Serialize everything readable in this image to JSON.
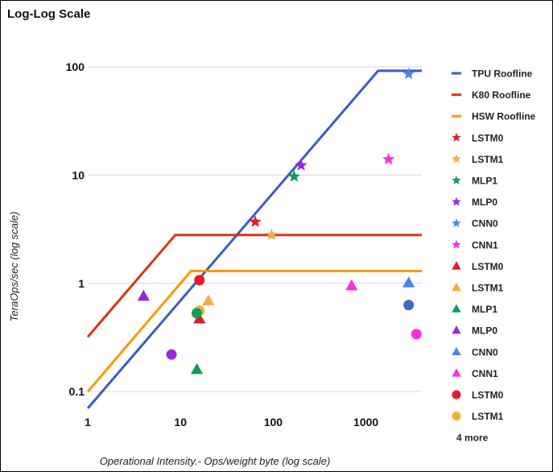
{
  "chart_data": {
    "type": "scatter",
    "title": "Log-Log Scale",
    "xlabel": "Operational Intensity.- Ops/weight byte (log scale)",
    "ylabel": "TeraOps/sec (log scale)",
    "xscale": "log",
    "yscale": "log",
    "xlim": [
      1,
      4000
    ],
    "ylim": [
      0.07,
      100
    ],
    "grid": "horizontal",
    "legend_position": "right",
    "x_ticks": [
      {
        "value": 1,
        "label": "1"
      },
      {
        "value": 10,
        "label": "10"
      },
      {
        "value": 100,
        "label": "100"
      },
      {
        "value": 1000,
        "label": "1000"
      }
    ],
    "y_ticks": [
      {
        "value": 0.1,
        "label": "0.1"
      },
      {
        "value": 1,
        "label": "1"
      },
      {
        "value": 10,
        "label": "10"
      },
      {
        "value": 100,
        "label": "100"
      }
    ],
    "lines": [
      {
        "name": "TPU Roofline",
        "color": "#3c5cc4",
        "points": [
          [
            1,
            0.07
          ],
          [
            1350,
            92
          ],
          [
            4000,
            92
          ]
        ]
      },
      {
        "name": "K80 Roofline",
        "color": "#dd3311",
        "points": [
          [
            1,
            0.32
          ],
          [
            8.8,
            2.8
          ],
          [
            4000,
            2.8
          ]
        ]
      },
      {
        "name": "HSW Roofline",
        "color": "#ff9900",
        "points": [
          [
            1,
            0.1
          ],
          [
            13,
            1.3
          ],
          [
            4000,
            1.3
          ]
        ]
      }
    ],
    "series": [
      {
        "name": "LSTM0",
        "marker": "star",
        "color": "#e8192c",
        "points": [
          [
            64,
            3.7
          ]
        ]
      },
      {
        "name": "LSTM1",
        "marker": "star",
        "color": "#fbab38",
        "points": [
          [
            96,
            2.8
          ]
        ]
      },
      {
        "name": "MLP1",
        "marker": "star",
        "color": "#0f9d58",
        "points": [
          [
            168,
            9.7
          ]
        ]
      },
      {
        "name": "MLP0",
        "marker": "star",
        "color": "#9c27d6",
        "points": [
          [
            200,
            12.3
          ]
        ]
      },
      {
        "name": "CNN0",
        "marker": "star",
        "color": "#4a86e8",
        "points": [
          [
            2888,
            86
          ]
        ]
      },
      {
        "name": "CNN1",
        "marker": "star",
        "color": "#ff2bea",
        "points": [
          [
            1750,
            14
          ]
        ]
      },
      {
        "name": "LSTM0",
        "marker": "triangle",
        "color": "#e8192c",
        "points": [
          [
            16,
            0.47
          ]
        ]
      },
      {
        "name": "LSTM1",
        "marker": "triangle",
        "color": "#fbab38",
        "points": [
          [
            20,
            0.69
          ]
        ]
      },
      {
        "name": "MLP1",
        "marker": "triangle",
        "color": "#0f9d58",
        "points": [
          [
            15,
            0.16
          ]
        ]
      },
      {
        "name": "MLP0",
        "marker": "triangle",
        "color": "#9c27d6",
        "points": [
          [
            4,
            0.76
          ]
        ]
      },
      {
        "name": "CNN0",
        "marker": "triangle",
        "color": "#4a86e8",
        "points": [
          [
            2888,
            1.01
          ]
        ]
      },
      {
        "name": "CNN1",
        "marker": "triangle",
        "color": "#ff2bea",
        "points": [
          [
            700,
            0.95
          ]
        ]
      },
      {
        "name": "LSTM0",
        "marker": "circle",
        "color": "#e8192c",
        "points": [
          [
            16,
            1.07
          ]
        ]
      },
      {
        "name": "LSTM1",
        "marker": "circle",
        "color": "#fbab38",
        "points": [
          [
            16,
            0.56
          ]
        ]
      },
      {
        "name": "MLP1",
        "marker": "circle",
        "color": "#0f9d58",
        "points": [
          [
            15,
            0.53
          ]
        ]
      },
      {
        "name": "MLP0",
        "marker": "circle",
        "color": "#9c27d6",
        "points": [
          [
            8,
            0.22
          ]
        ]
      },
      {
        "name": "CNN0",
        "marker": "circle",
        "color": "#3c6ac8",
        "points": [
          [
            2888,
            0.63
          ]
        ]
      },
      {
        "name": "CNN1",
        "marker": "circle",
        "color": "#ff2bea",
        "points": [
          [
            3500,
            0.34
          ]
        ]
      }
    ],
    "legend": {
      "entries": [
        {
          "label": "TPU Roofline",
          "kind": "line",
          "color": "#3c5cc4"
        },
        {
          "label": "K80 Roofline",
          "kind": "line",
          "color": "#dd3311"
        },
        {
          "label": "HSW Roofline",
          "kind": "line",
          "color": "#ff9900"
        },
        {
          "label": "LSTM0",
          "kind": "star",
          "color": "#e8192c"
        },
        {
          "label": "LSTM1",
          "kind": "star",
          "color": "#fbab38"
        },
        {
          "label": "MLP1",
          "kind": "star",
          "color": "#0f9d58"
        },
        {
          "label": "MLP0",
          "kind": "star",
          "color": "#9c27d6"
        },
        {
          "label": "CNN0",
          "kind": "star",
          "color": "#4a86e8"
        },
        {
          "label": "CNN1",
          "kind": "star",
          "color": "#ff2bea"
        },
        {
          "label": "LSTM0",
          "kind": "triangle",
          "color": "#e8192c"
        },
        {
          "label": "LSTM1",
          "kind": "triangle",
          "color": "#fbab38"
        },
        {
          "label": "MLP1",
          "kind": "triangle",
          "color": "#0f9d58"
        },
        {
          "label": "MLP0",
          "kind": "triangle",
          "color": "#9c27d6"
        },
        {
          "label": "CNN0",
          "kind": "triangle",
          "color": "#4a86e8"
        },
        {
          "label": "CNN1",
          "kind": "triangle",
          "color": "#ff2bea"
        },
        {
          "label": "LSTM0",
          "kind": "circle",
          "color": "#e8192c"
        },
        {
          "label": "LSTM1",
          "kind": "circle",
          "color": "#fbab38"
        }
      ],
      "more_label": "4 more"
    }
  }
}
